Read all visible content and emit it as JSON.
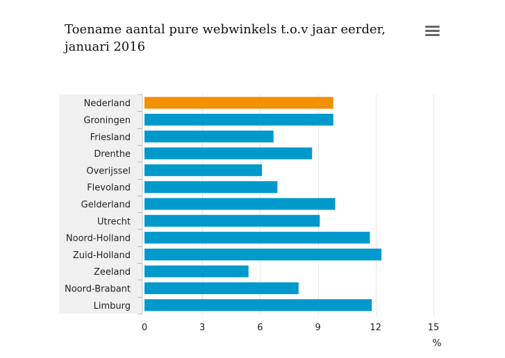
{
  "chart_data": {
    "type": "bar",
    "orientation": "horizontal",
    "title_lines": [
      "Toename aantal pure webwinkels t.o.v jaar eerder,",
      "januari 2016"
    ],
    "categories": [
      "Nederland",
      "Groningen",
      "Friesland",
      "Drenthe",
      "Overijssel",
      "Flevoland",
      "Gelderland",
      "Utrecht",
      "Noord-Holland",
      "Zuid-Holland",
      "Zeeland",
      "Noord-Brabant",
      "Limburg"
    ],
    "values": [
      9.8,
      9.8,
      6.7,
      8.7,
      6.1,
      6.9,
      9.9,
      9.1,
      11.7,
      12.3,
      5.4,
      8.0,
      11.8
    ],
    "highlight_category": "Nederland",
    "xlim": [
      0,
      15
    ],
    "xticks": [
      0,
      3,
      6,
      9,
      12,
      15
    ],
    "xlabel": "%",
    "ylabel": "",
    "grid": true,
    "legend": false
  },
  "colors": {
    "bar": "#0099cc",
    "highlight": "#f39000",
    "grid": "#e6e6e6",
    "category_band": "#f0f0f0",
    "menu_icon": "#666666"
  },
  "menu": {
    "icon": "hamburger-menu-icon"
  }
}
